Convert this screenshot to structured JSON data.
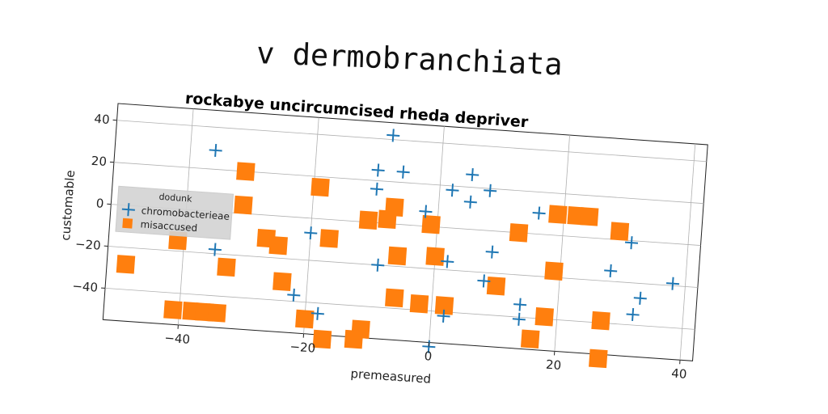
{
  "page": {
    "heading": "v dermobranchiata"
  },
  "chart_data": {
    "type": "scatter",
    "title": "rockabye uncircumcised rheda depriver",
    "xlabel": "premeasured",
    "ylabel": "customable",
    "xlim": [
      -52,
      42
    ],
    "ylim": [
      -55,
      48
    ],
    "xticks": [
      -40,
      -20,
      0,
      20,
      40
    ],
    "yticks": [
      -40,
      -20,
      0,
      20,
      40
    ],
    "xtick_labels": [
      "−40",
      "−20",
      "0",
      "20",
      "40"
    ],
    "ytick_labels": [
      "−40",
      "−20",
      "0",
      "20",
      "40"
    ],
    "grid": true,
    "legend": {
      "title": "dodunk",
      "placement": "center-left"
    },
    "series": [
      {
        "name": "chromobacterieae",
        "marker": "plus",
        "color": "#1f77b4",
        "points": [
          [
            -36,
            29
          ],
          [
            -8,
            42
          ],
          [
            -10,
            25
          ],
          [
            -6,
            25
          ],
          [
            -10,
            16
          ],
          [
            -2,
            7
          ],
          [
            2,
            18
          ],
          [
            5,
            26
          ],
          [
            8,
            19
          ],
          [
            5,
            13
          ],
          [
            16,
            10
          ],
          [
            -20,
            -7
          ],
          [
            -9,
            -20
          ],
          [
            2,
            -16
          ],
          [
            9,
            -10
          ],
          [
            8,
            -24
          ],
          [
            31,
            -1
          ],
          [
            28,
            -15
          ],
          [
            38,
            -19
          ],
          [
            33,
            -27
          ],
          [
            32,
            -35
          ],
          [
            -35,
            -18
          ],
          [
            -22,
            -37
          ],
          [
            -18,
            -45
          ],
          [
            2,
            -42
          ],
          [
            0,
            -57
          ],
          [
            14,
            -34
          ],
          [
            14,
            -41
          ]
        ]
      },
      {
        "name": "misaccused",
        "marker": "square",
        "color": "#ff7f0e",
        "points": [
          [
            -31,
            20
          ],
          [
            -19,
            15
          ],
          [
            -31,
            4
          ],
          [
            -7,
            8
          ],
          [
            -11,
            1
          ],
          [
            -8,
            2
          ],
          [
            -1,
            1
          ],
          [
            13,
            0
          ],
          [
            19,
            10
          ],
          [
            22,
            10
          ],
          [
            24,
            10
          ],
          [
            29,
            4
          ],
          [
            -27,
            -11
          ],
          [
            -25,
            -14
          ],
          [
            -17,
            -9
          ],
          [
            -6,
            -15
          ],
          [
            0,
            -14
          ],
          [
            -41,
            -15
          ],
          [
            -49,
            -28
          ],
          [
            -33,
            -26
          ],
          [
            -24,
            -31
          ],
          [
            10,
            -26
          ],
          [
            19,
            -17
          ],
          [
            -6,
            -35
          ],
          [
            -2,
            -37
          ],
          [
            2,
            -37
          ],
          [
            18,
            -39
          ],
          [
            27,
            -39
          ],
          [
            -41,
            -48
          ],
          [
            -38,
            -48
          ],
          [
            -36,
            -48
          ],
          [
            -34,
            -48
          ],
          [
            -20,
            -48
          ],
          [
            -11,
            -51
          ],
          [
            -17,
            -57
          ],
          [
            -12,
            -56
          ],
          [
            16,
            -50
          ],
          [
            27,
            -57
          ]
        ]
      }
    ]
  }
}
